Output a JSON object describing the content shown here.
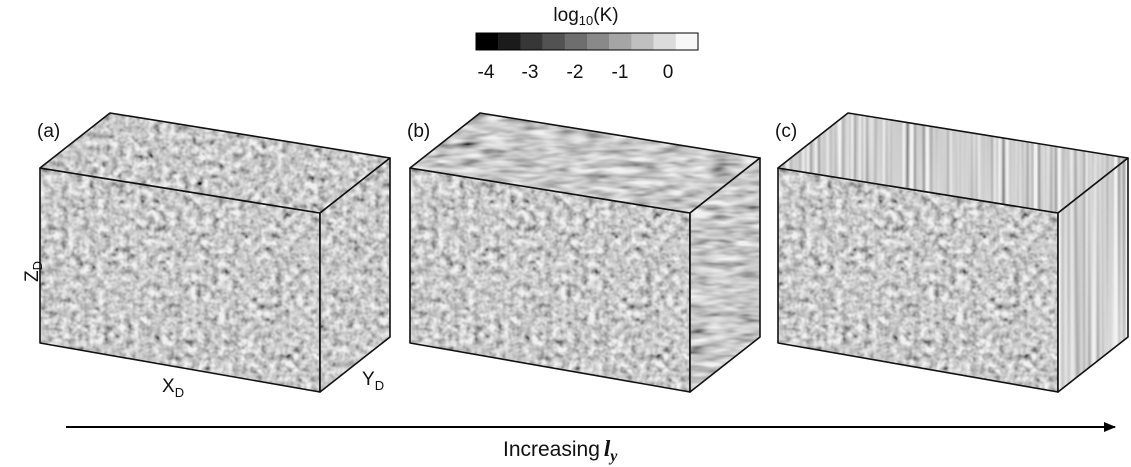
{
  "colorbar": {
    "title": {
      "base": "log",
      "sub": "10",
      "rest": "(K)"
    },
    "ticks": [
      "-4",
      "-3",
      "-2",
      "-1",
      "0"
    ]
  },
  "panels": [
    {
      "label": "(a)"
    },
    {
      "label": "(b)"
    },
    {
      "label": "(c)"
    }
  ],
  "axes": {
    "z": {
      "base": "Z",
      "sub": "D"
    },
    "x": {
      "base": "X",
      "sub": "D"
    },
    "y": {
      "base": "Y",
      "sub": "D"
    }
  },
  "arrow": {
    "text": "Increasing",
    "symbol": "l",
    "sub": "y"
  }
}
